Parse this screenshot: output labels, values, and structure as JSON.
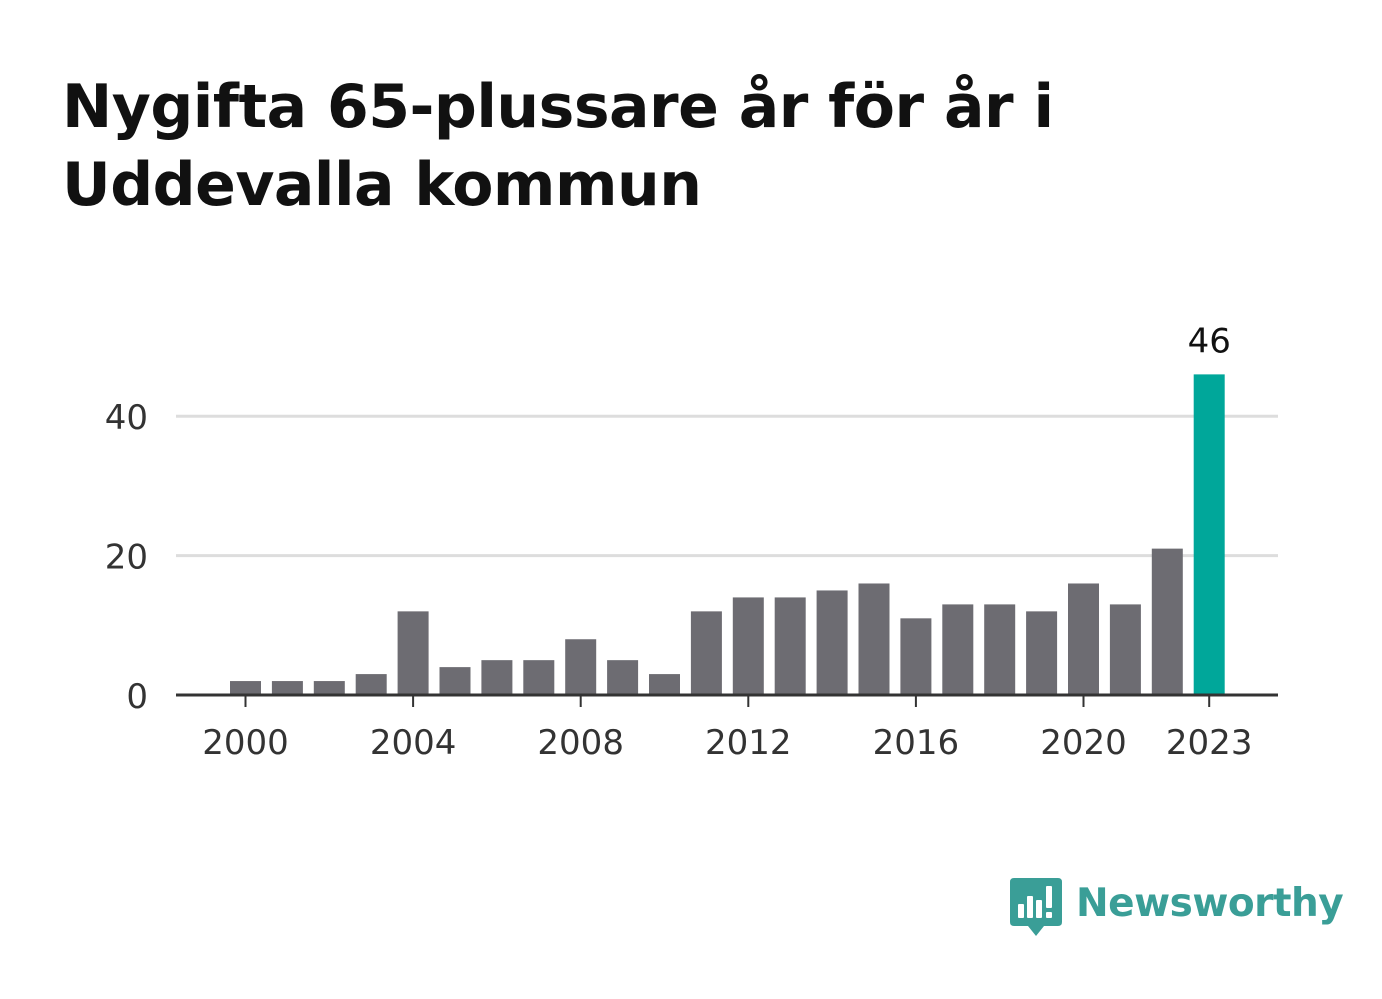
{
  "title": "Nygifta 65-plussare år för år i Uddevalla kommun",
  "brand": {
    "name": "Newsworthy",
    "icon": "newsworthy-logo-icon",
    "color": "#3a9e97"
  },
  "chart_data": {
    "type": "bar",
    "title": "Nygifta 65-plussare år för år i Uddevalla kommun",
    "xlabel": "",
    "ylabel": "",
    "categories": [
      "2000",
      "2001",
      "2002",
      "2003",
      "2004",
      "2005",
      "2006",
      "2007",
      "2008",
      "2009",
      "2010",
      "2011",
      "2012",
      "2013",
      "2014",
      "2015",
      "2016",
      "2017",
      "2018",
      "2019",
      "2020",
      "2021",
      "2022",
      "2023"
    ],
    "values": [
      2,
      2,
      2,
      3,
      12,
      4,
      5,
      5,
      8,
      5,
      3,
      12,
      14,
      14,
      15,
      16,
      11,
      13,
      13,
      12,
      16,
      13,
      21,
      46
    ],
    "ylim": [
      0,
      46
    ],
    "yticks": [
      "0",
      "20",
      "40"
    ],
    "ytick_values": [
      0,
      20,
      40
    ],
    "xticks": [
      "2000",
      "2004",
      "2008",
      "2012",
      "2016",
      "2020",
      "2023"
    ],
    "highlight": {
      "category": "2023",
      "label": "46"
    },
    "grid": true,
    "colors": {
      "bar": "#6d6c72",
      "highlight": "#00a79a",
      "grid": "#dddddd",
      "axis": "#333333",
      "tick_text": "#333333",
      "label_text": "#111111"
    }
  }
}
